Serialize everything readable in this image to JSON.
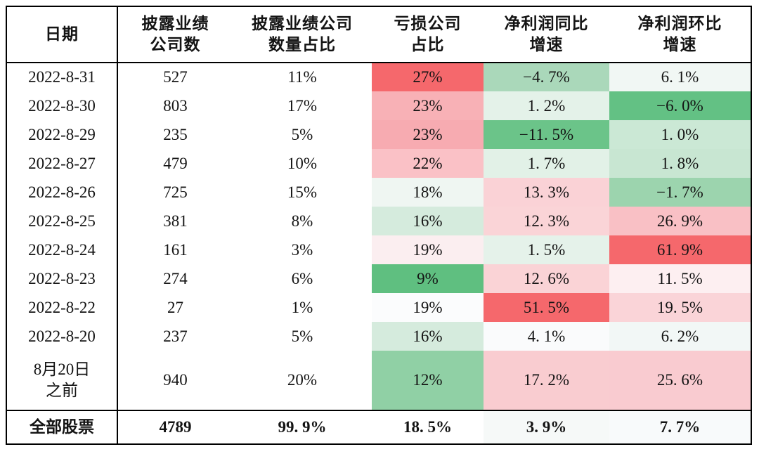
{
  "table": {
    "cell_names": [
      "date",
      "disclosed-count",
      "disclosed-ratio",
      "loss-ratio",
      "yoy-growth",
      "qoq-growth"
    ],
    "columns": [
      {
        "label_lines": [
          "日期"
        ]
      },
      {
        "label_lines": [
          "披露业绩",
          "公司数"
        ]
      },
      {
        "label_lines": [
          "披露业绩公司",
          "数量占比"
        ]
      },
      {
        "label_lines": [
          "亏损公司",
          "占比"
        ]
      },
      {
        "label_lines": [
          "净利润同比",
          "增速"
        ]
      },
      {
        "label_lines": [
          "净利润环比",
          "增速"
        ]
      }
    ],
    "rows": [
      {
        "cells": [
          {
            "text": "2022-8-31"
          },
          {
            "text": "527"
          },
          {
            "text": "11%"
          },
          {
            "text": "27%",
            "bg": "#f5686c"
          },
          {
            "text": "−4. 7%",
            "bg": "#aad8ba"
          },
          {
            "text": "6. 1%",
            "bg": "#f1f7f4"
          }
        ]
      },
      {
        "cells": [
          {
            "text": "2022-8-30"
          },
          {
            "text": "803"
          },
          {
            "text": "17%"
          },
          {
            "text": "23%",
            "bg": "#f8b1b6"
          },
          {
            "text": "1. 2%",
            "bg": "#e4f2e9"
          },
          {
            "text": "−6. 0%",
            "bg": "#63c184"
          }
        ]
      },
      {
        "cells": [
          {
            "text": "2022-8-29"
          },
          {
            "text": "235"
          },
          {
            "text": "5%"
          },
          {
            "text": "23%",
            "bg": "#f7abb1"
          },
          {
            "text": "−11. 5%",
            "bg": "#6bc489"
          },
          {
            "text": "1. 0%",
            "bg": "#cbe8d5"
          }
        ]
      },
      {
        "cells": [
          {
            "text": "2022-8-27"
          },
          {
            "text": "479"
          },
          {
            "text": "10%"
          },
          {
            "text": "22%",
            "bg": "#fac1c6"
          },
          {
            "text": "1. 7%",
            "bg": "#e2f1e7"
          },
          {
            "text": "1. 8%",
            "bg": "#c8e6d2"
          }
        ]
      },
      {
        "cells": [
          {
            "text": "2022-8-26"
          },
          {
            "text": "725"
          },
          {
            "text": "15%"
          },
          {
            "text": "18%",
            "bg": "#eff6f2"
          },
          {
            "text": "13. 3%",
            "bg": "#fad2d6"
          },
          {
            "text": "−1. 7%",
            "bg": "#9cd4ae"
          }
        ]
      },
      {
        "cells": [
          {
            "text": "2022-8-25"
          },
          {
            "text": "381"
          },
          {
            "text": "8%"
          },
          {
            "text": "16%",
            "bg": "#d5ebdd"
          },
          {
            "text": "12. 3%",
            "bg": "#fad4d7"
          },
          {
            "text": "26. 9%",
            "bg": "#f9c0c5"
          }
        ]
      },
      {
        "cells": [
          {
            "text": "2022-8-24"
          },
          {
            "text": "161"
          },
          {
            "text": "3%"
          },
          {
            "text": "19%",
            "bg": "#fbeef0"
          },
          {
            "text": "1. 5%",
            "bg": "#e5f2ea"
          },
          {
            "text": "61. 9%",
            "bg": "#f5686c"
          }
        ]
      },
      {
        "cells": [
          {
            "text": "2022-8-23"
          },
          {
            "text": "274"
          },
          {
            "text": "6%"
          },
          {
            "text": "9%",
            "bg": "#5fbf80"
          },
          {
            "text": "12. 6%",
            "bg": "#fad3d6"
          },
          {
            "text": "11. 5%",
            "bg": "#fdeff1"
          }
        ]
      },
      {
        "cells": [
          {
            "text": "2022-8-22"
          },
          {
            "text": "27"
          },
          {
            "text": "1%"
          },
          {
            "text": "19%",
            "bg": "#fbfcfd"
          },
          {
            "text": "51. 5%",
            "bg": "#f5686c"
          },
          {
            "text": "19. 5%",
            "bg": "#fad4d8"
          }
        ]
      },
      {
        "cells": [
          {
            "text": "2022-8-20"
          },
          {
            "text": "237"
          },
          {
            "text": "5%"
          },
          {
            "text": "16%",
            "bg": "#d5ebdd"
          },
          {
            "text": "4. 1%",
            "bg": "#fafbfc"
          },
          {
            "text": "6. 2%",
            "bg": "#f2f7f6"
          }
        ]
      },
      {
        "cells": [
          {
            "text": [
              "8月20日",
              "之前"
            ]
          },
          {
            "text": "940"
          },
          {
            "text": "20%"
          },
          {
            "text": "12%",
            "bg": "#90d0a5"
          },
          {
            "text": "17. 2%",
            "bg": "#f9ccd0"
          },
          {
            "text": "25. 6%",
            "bg": "#f9cbd0"
          }
        ]
      }
    ],
    "summary": {
      "cells": [
        {
          "text": "全部股票"
        },
        {
          "text": "4789"
        },
        {
          "text": "99. 9%"
        },
        {
          "text": "18. 5%",
          "bg": "#ffffff"
        },
        {
          "text": "3. 9%",
          "bg": "#f6f9f8"
        },
        {
          "text": "7. 7%",
          "bg": "#f8fafb"
        }
      ]
    },
    "heatmap_colors": {
      "strong_red": "#f5686c",
      "light_pink": "#fad3d7",
      "strong_green": "#63c184",
      "light_green": "#d5ebdd",
      "neutral_white": "#fbfcfd"
    }
  },
  "chart_data": {
    "type": "table",
    "title": "",
    "columns": [
      "日期",
      "披露业绩公司数",
      "披露业绩公司数量占比",
      "亏损公司占比",
      "净利润同比增速",
      "净利润环比增速"
    ],
    "rows": [
      [
        "2022-8-31",
        527,
        "11%",
        "27%",
        "-4.7%",
        "6.1%"
      ],
      [
        "2022-8-30",
        803,
        "17%",
        "23%",
        "1.2%",
        "-6.0%"
      ],
      [
        "2022-8-29",
        235,
        "5%",
        "23%",
        "-11.5%",
        "1.0%"
      ],
      [
        "2022-8-27",
        479,
        "10%",
        "22%",
        "1.7%",
        "1.8%"
      ],
      [
        "2022-8-26",
        725,
        "15%",
        "18%",
        "13.3%",
        "-1.7%"
      ],
      [
        "2022-8-25",
        381,
        "8%",
        "16%",
        "12.3%",
        "26.9%"
      ],
      [
        "2022-8-24",
        161,
        "3%",
        "19%",
        "1.5%",
        "61.9%"
      ],
      [
        "2022-8-23",
        274,
        "6%",
        "9%",
        "12.6%",
        "11.5%"
      ],
      [
        "2022-8-22",
        27,
        "1%",
        "19%",
        "51.5%",
        "19.5%"
      ],
      [
        "2022-8-20",
        237,
        "5%",
        "16%",
        "4.1%",
        "6.2%"
      ],
      [
        "8月20日之前",
        940,
        "20%",
        "12%",
        "17.2%",
        "25.6%"
      ],
      [
        "全部股票",
        4789,
        "99.9%",
        "18.5%",
        "3.9%",
        "7.7%"
      ]
    ],
    "layout_hints": "last three columns use red(high)/green(low/negative) heatmap shading; final row is a bold totals row"
  }
}
